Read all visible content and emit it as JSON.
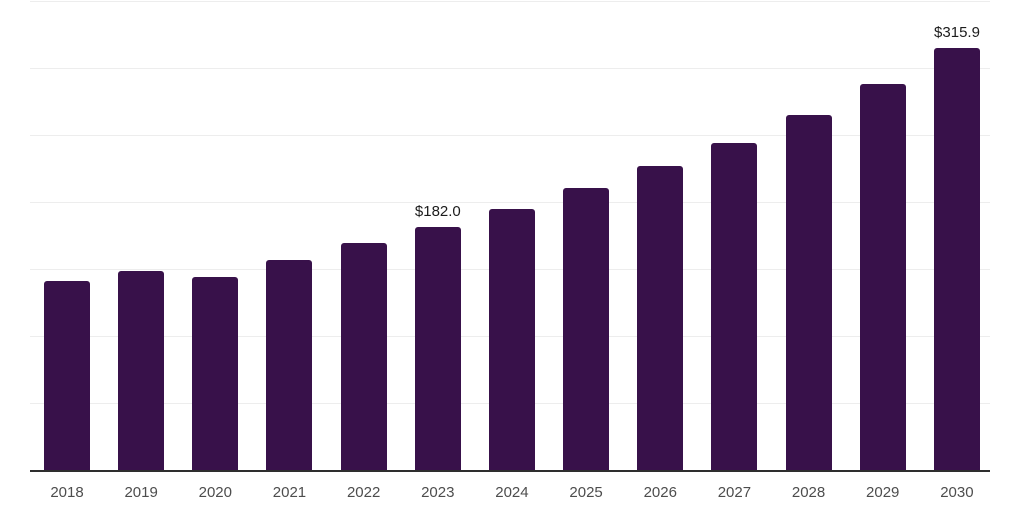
{
  "chart_data": {
    "type": "bar",
    "title": "",
    "xlabel": "",
    "ylabel": "",
    "categories": [
      "2018",
      "2019",
      "2020",
      "2021",
      "2022",
      "2023",
      "2024",
      "2025",
      "2026",
      "2027",
      "2028",
      "2029",
      "2030"
    ],
    "values": [
      142.0,
      149.5,
      145.0,
      157.5,
      170.0,
      182.0,
      195.5,
      211.0,
      227.5,
      245.0,
      265.5,
      289.0,
      315.9
    ],
    "value_labels": {
      "2023": "$182.0",
      "2030": "$315.9"
    },
    "ylim": [
      0,
      350
    ],
    "gridline_step": 50,
    "grid": "horizontal-only",
    "legend": "none",
    "y_axis_ticks_visible": false,
    "colors": {
      "bar": "#38114A",
      "gridline": "#ededed",
      "axis_line": "#2e2e2e",
      "tick_label": "#4d4d4d",
      "value_label": "#1c1c1c",
      "background": "#ffffff"
    }
  }
}
